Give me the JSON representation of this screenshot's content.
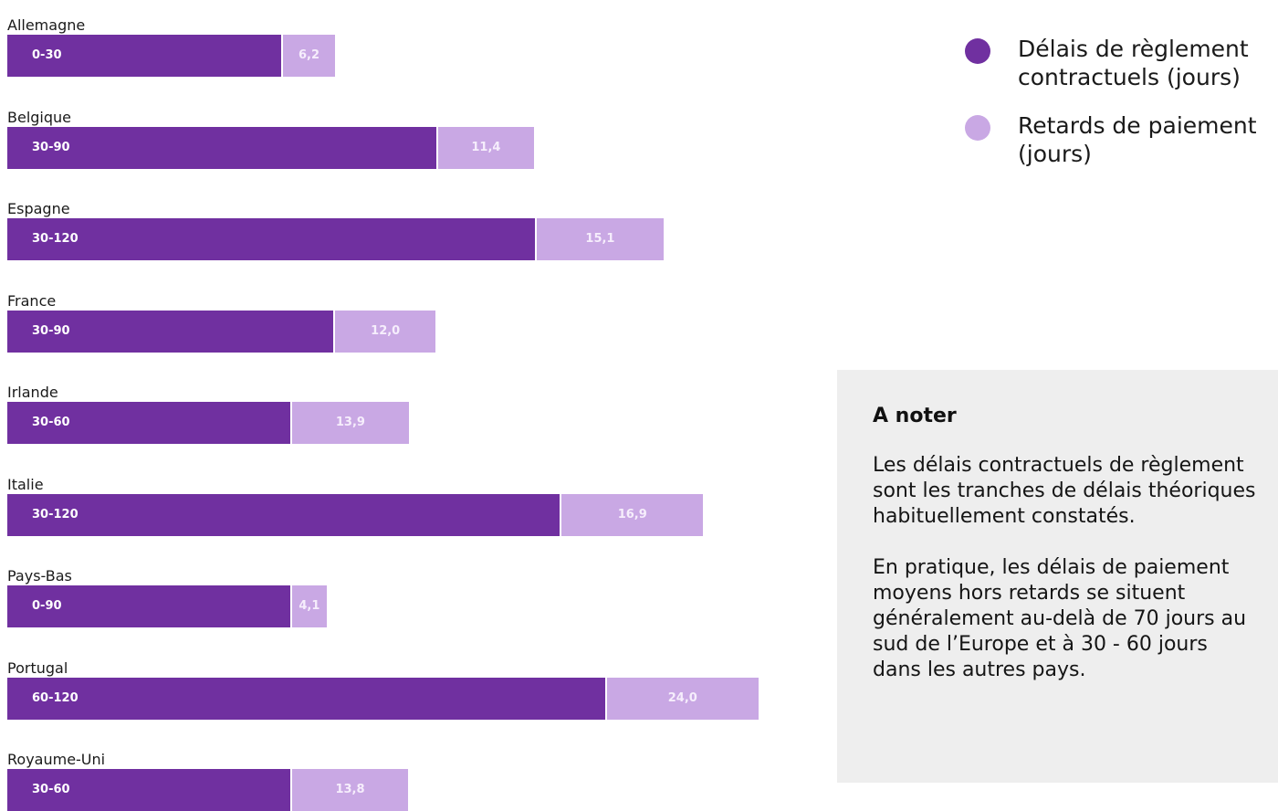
{
  "chart_data": {
    "type": "bar",
    "orientation": "horizontal",
    "stacked": true,
    "categories": [
      "Allemagne",
      "Belgique",
      "Espagne",
      "France",
      "Irlande",
      "Italie",
      "Pays-Bas",
      "Portugal",
      "Royaume-Uni"
    ],
    "series": [
      {
        "name": "Délais de règlement contractuels (jours)",
        "color": "#7030a0",
        "labels": [
          "0-30",
          "30-90",
          "30-120",
          "30-90",
          "30-60",
          "30-120",
          "0-90",
          "60-120",
          "30-60"
        ]
      },
      {
        "name": "Retards de paiement (jours)",
        "color": "#c9a8e4",
        "values": [
          6.2,
          11.4,
          15.1,
          12.0,
          13.9,
          16.9,
          4.1,
          24.0,
          13.8
        ],
        "labels": [
          "6,2",
          "11,4",
          "15,1",
          "12,0",
          "13,9",
          "16,9",
          "4,1",
          "24,0",
          "13,8"
        ]
      }
    ],
    "title": "",
    "xlabel": "",
    "ylabel": "",
    "grid": false,
    "legend_position": "top-right"
  },
  "legend": {
    "items": [
      {
        "label": "Délais de règlement contractuels (jours)",
        "color": "#7030a0",
        "icon": "circle"
      },
      {
        "label": "Retards de paiement (jours)",
        "color": "#c9a8e4",
        "icon": "circle"
      }
    ]
  },
  "note": {
    "title": "A noter",
    "paragraphs": [
      "Les délais contractuels de règlement sont les tranches de délais théoriques habituellement constatés.",
      "En pratique, les délais de paiement moyens hors retards se situent généralement au-delà de 70 jours au sud de l’Europe et à 30 - 60 jours dans les autres pays."
    ]
  }
}
